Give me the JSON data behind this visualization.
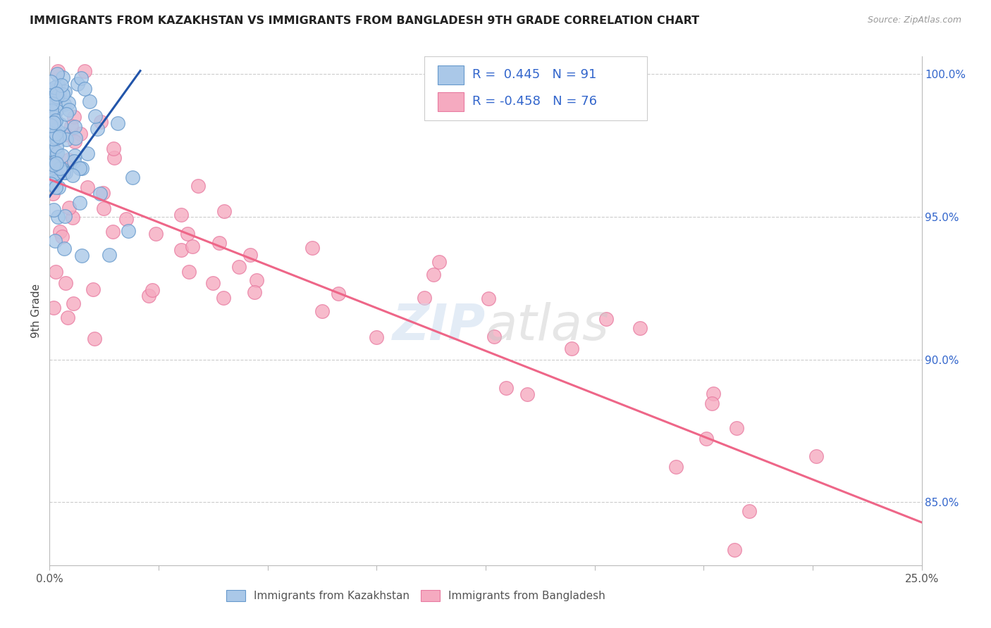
{
  "title": "IMMIGRANTS FROM KAZAKHSTAN VS IMMIGRANTS FROM BANGLADESH 9TH GRADE CORRELATION CHART",
  "source": "Source: ZipAtlas.com",
  "ylabel": "9th Grade",
  "x_min": 0.0,
  "x_max": 0.25,
  "y_min": 0.828,
  "y_max": 1.006,
  "kazakhstan_color": "#aac8e8",
  "kazakhstan_edge": "#6699cc",
  "bangladesh_color": "#f5aac0",
  "bangladesh_edge": "#e87aa0",
  "line_kazakhstan": "#2255aa",
  "line_bangladesh": "#ee6688",
  "R_kazakhstan": 0.445,
  "N_kazakhstan": 91,
  "R_bangladesh": -0.458,
  "N_bangladesh": 76,
  "legend_text_color": "#3366cc",
  "kaz_line_x0": 0.0,
  "kaz_line_y0": 0.957,
  "kaz_line_x1": 0.026,
  "kaz_line_y1": 1.001,
  "ban_line_x0": 0.0,
  "ban_line_y0": 0.963,
  "ban_line_x1": 0.25,
  "ban_line_y1": 0.843,
  "grid_color": "#cccccc",
  "yticks": [
    0.85,
    0.9,
    0.95,
    1.0
  ],
  "ytick_labels": [
    "85.0%",
    "90.0%",
    "95.0%",
    "100.0%"
  ],
  "xtick_labels_outer": [
    "0.0%",
    "25.0%"
  ]
}
